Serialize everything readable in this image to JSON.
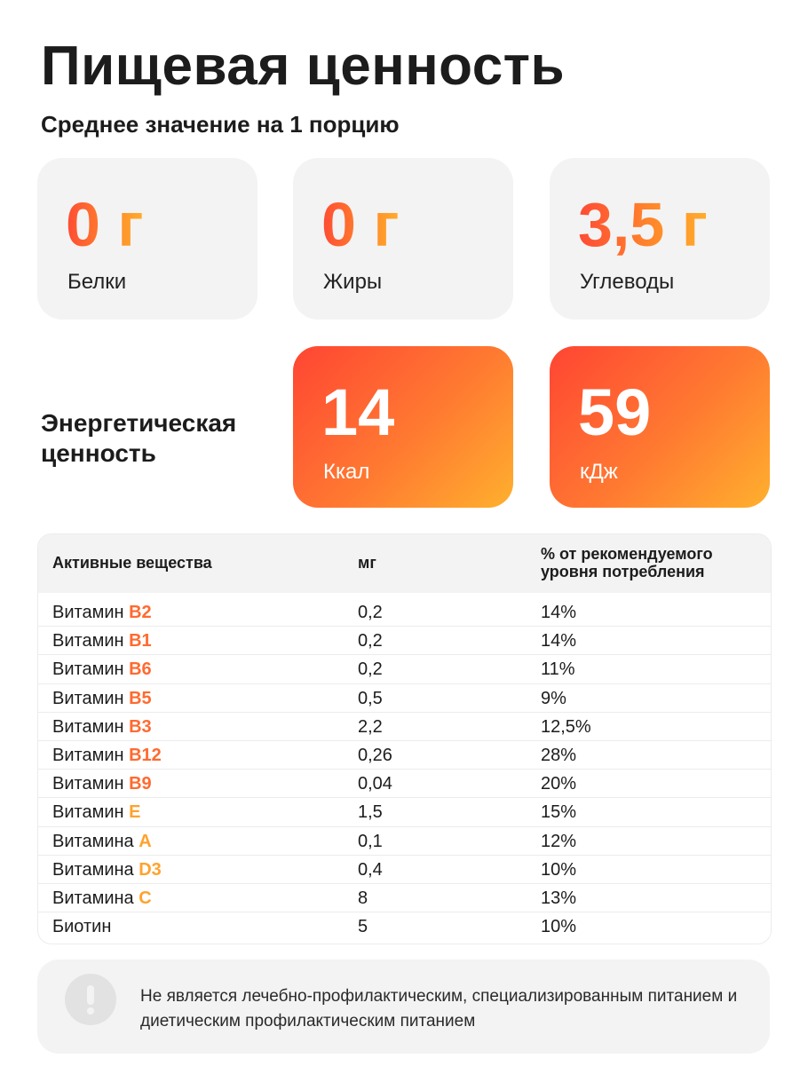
{
  "header": {
    "title": "Пищевая ценность",
    "subtitle": "Среднее значение на 1 порцию"
  },
  "macros": [
    {
      "value": "0 г",
      "label": "Белки"
    },
    {
      "value": "0 г",
      "label": "Жиры"
    },
    {
      "value": "3,5 г",
      "label": "Углеводы"
    }
  ],
  "energy": {
    "label": "Энергетическая ценность",
    "kcal": {
      "value": "14",
      "unit": "Ккал"
    },
    "kj": {
      "value": "59",
      "unit": "кДж"
    }
  },
  "table": {
    "headers": [
      "Активные вещества",
      "мг",
      "% от рекомендуемого уровня потребления"
    ],
    "rows": [
      {
        "name": "Витамин",
        "vit": "B2",
        "vit_color": "#ff6a30",
        "mg": "0,2",
        "pct": "14%"
      },
      {
        "name": "Витамин",
        "vit": "B1",
        "vit_color": "#ff6a30",
        "mg": "0,2",
        "pct": "14%"
      },
      {
        "name": "Витамин",
        "vit": "B6",
        "vit_color": "#ff6a30",
        "mg": "0,2",
        "pct": "11%"
      },
      {
        "name": "Витамин",
        "vit": "B5",
        "vit_color": "#ff6a30",
        "mg": "0,5",
        "pct": "9%"
      },
      {
        "name": "Витамин",
        "vit": "B3",
        "vit_color": "#ff6a30",
        "mg": "2,2",
        "pct": "12,5%"
      },
      {
        "name": "Витамин",
        "vit": "B12",
        "vit_color": "#ff6a30",
        "mg": "0,26",
        "pct": "28%"
      },
      {
        "name": "Витамин",
        "vit": "B9",
        "vit_color": "#ff6a30",
        "mg": "0,04",
        "pct": "20%"
      },
      {
        "name": "Витамин",
        "vit": "E",
        "vit_color": "#ffa22e",
        "mg": "1,5",
        "pct": "15%"
      },
      {
        "name": "Витамина",
        "vit": "A",
        "vit_color": "#ffa22e",
        "mg": "0,1",
        "pct": "12%"
      },
      {
        "name": "Витамина",
        "vit": "D3",
        "vit_color": "#ffa22e",
        "mg": "0,4",
        "pct": "10%"
      },
      {
        "name": "Витамина",
        "vit": "C",
        "vit_color": "#ffa22e",
        "mg": "8",
        "pct": "13%"
      },
      {
        "name": "Биотин",
        "vit": "",
        "vit_color": "#ffa22e",
        "mg": "5",
        "pct": "10%"
      }
    ]
  },
  "note": {
    "icon": "exclamation-icon",
    "text": "Не является лечебно-профилактическим, специализированным питанием и диетическим профилактическим питанием"
  },
  "colors": {
    "accent_red": "#ff4533",
    "accent_orange": "#ffb02e",
    "card_bg": "#f3f3f3"
  }
}
